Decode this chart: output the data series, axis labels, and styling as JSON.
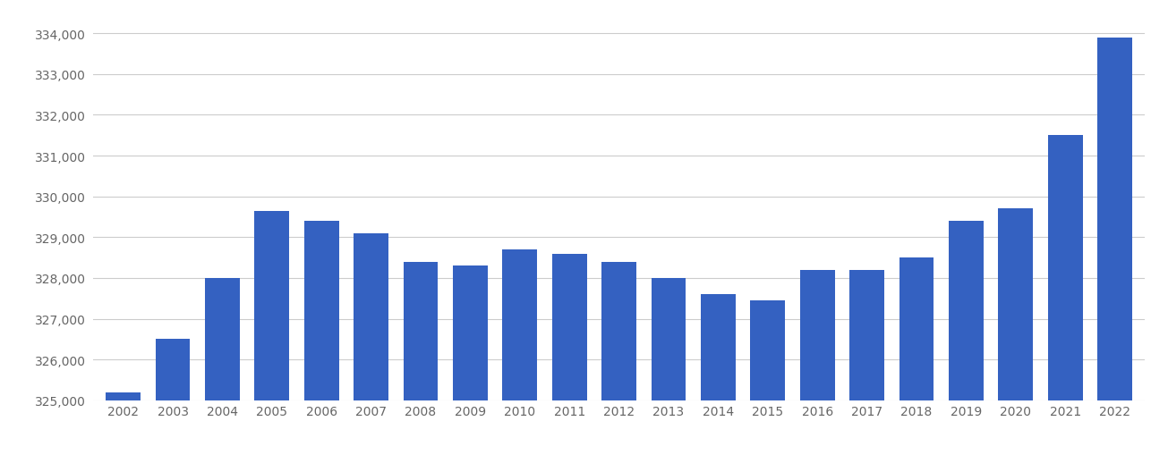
{
  "years": [
    "2002",
    "2003",
    "2004",
    "2005",
    "2006",
    "2007",
    "2008",
    "2009",
    "2010",
    "2011",
    "2012",
    "2013",
    "2014",
    "2015",
    "2016",
    "2017",
    "2018",
    "2019",
    "2020",
    "2021",
    "2022"
  ],
  "values": [
    325200,
    326500,
    328000,
    329650,
    329400,
    329100,
    328400,
    328300,
    328700,
    328600,
    328400,
    328000,
    327600,
    327450,
    328200,
    328200,
    328500,
    329400,
    329700,
    331500,
    333900
  ],
  "bar_color": "#3461c1",
  "background_color": "#ffffff",
  "grid_color": "#cccccc",
  "tick_color": "#666666",
  "ylim_min": 325000,
  "ylim_max": 334500,
  "yticks": [
    325000,
    326000,
    327000,
    328000,
    329000,
    330000,
    331000,
    332000,
    333000,
    334000
  ],
  "bar_width": 0.7
}
